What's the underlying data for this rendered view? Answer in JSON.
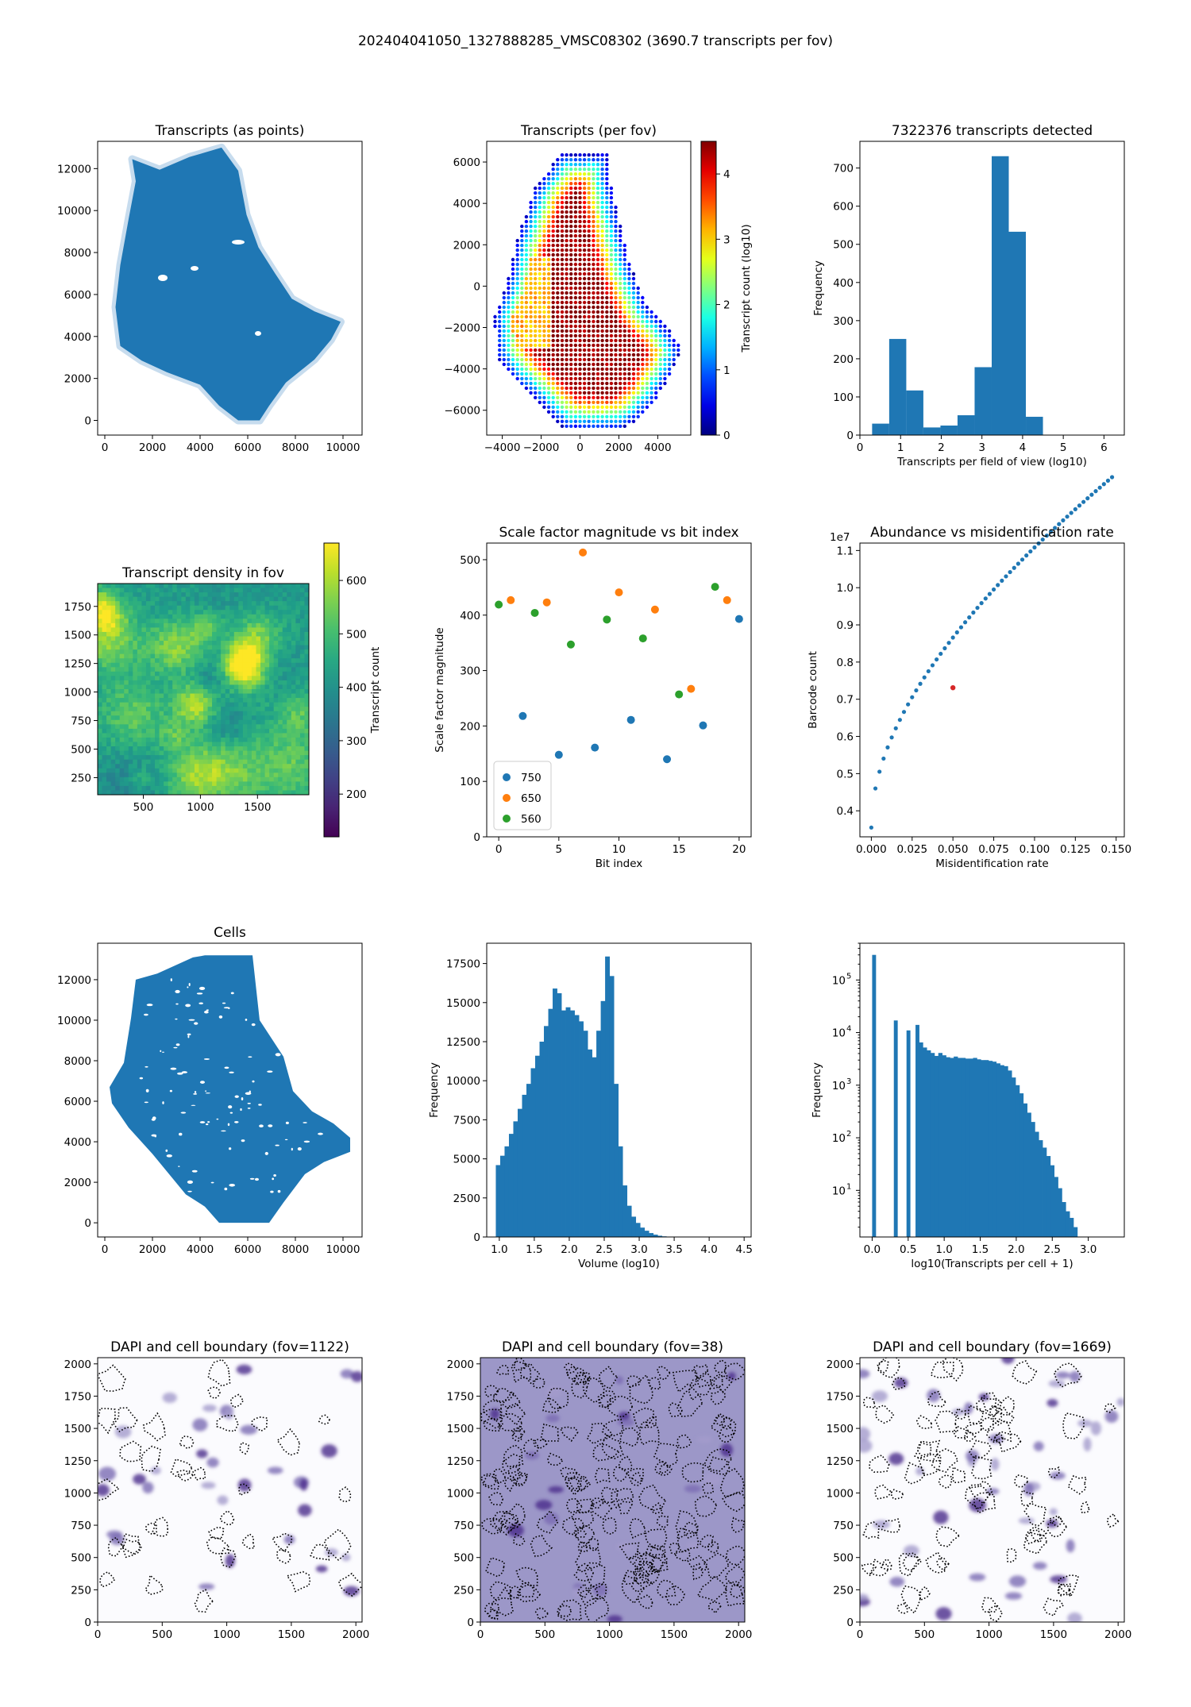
{
  "suptitle": "202404041050_1327888285_VMSC08302 (3690.7 transcripts per fov)",
  "colors": {
    "blue": "#1f77b4",
    "orange": "#ff7f0e",
    "green": "#2ca02c",
    "red": "#d62728"
  },
  "chart_data": [
    {
      "id": "p1",
      "type": "scatter",
      "title": "Transcripts (as points)",
      "xlim": [
        -300,
        10800
      ],
      "ylim": [
        -700,
        13300
      ],
      "xticks": [
        0,
        2000,
        4000,
        6000,
        8000,
        10000
      ],
      "yticks": [
        0,
        2000,
        4000,
        6000,
        8000,
        10000,
        12000
      ],
      "shape": [
        [
          1150,
          12450
        ],
        [
          2300,
          11950
        ],
        [
          3550,
          12550
        ],
        [
          4900,
          13000
        ],
        [
          5600,
          11900
        ],
        [
          5950,
          9800
        ],
        [
          6450,
          8250
        ],
        [
          7150,
          7000
        ],
        [
          7850,
          5800
        ],
        [
          8800,
          5200
        ],
        [
          9900,
          4700
        ],
        [
          9500,
          3850
        ],
        [
          8800,
          2900
        ],
        [
          7600,
          1800
        ],
        [
          6900,
          700
        ],
        [
          6500,
          0
        ],
        [
          5600,
          0
        ],
        [
          4800,
          700
        ],
        [
          4000,
          1700
        ],
        [
          2600,
          2300
        ],
        [
          1550,
          2850
        ],
        [
          650,
          3550
        ],
        [
          450,
          5400
        ],
        [
          650,
          7400
        ],
        [
          1000,
          9600
        ],
        [
          1300,
          11400
        ]
      ]
    },
    {
      "id": "p2",
      "type": "scatter",
      "title": "Transcripts (per fov)",
      "xlim": [
        -4800,
        5700
      ],
      "ylim": [
        -7200,
        7000
      ],
      "xticks": [
        -4000,
        -2000,
        0,
        2000,
        4000
      ],
      "yticks": [
        -6000,
        -4000,
        -2000,
        0,
        2000,
        4000,
        6000
      ],
      "colorbar": {
        "label": "Transcript count (log10)",
        "range": [
          0,
          4.5
        ],
        "ticks": [
          0,
          1,
          2,
          3,
          4
        ],
        "colormap": "jet"
      },
      "shape": [
        [
          -1000,
          6400
        ],
        [
          1400,
          6400
        ],
        [
          1600,
          4800
        ],
        [
          2100,
          2800
        ],
        [
          2600,
          1000
        ],
        [
          3400,
          -800
        ],
        [
          4200,
          -1600
        ],
        [
          5200,
          -3000
        ],
        [
          4700,
          -4300
        ],
        [
          3900,
          -5500
        ],
        [
          3000,
          -6500
        ],
        [
          1800,
          -7000
        ],
        [
          -800,
          -6900
        ],
        [
          -2000,
          -5800
        ],
        [
          -3200,
          -4700
        ],
        [
          -4300,
          -3400
        ],
        [
          -4400,
          -1400
        ],
        [
          -3800,
          0
        ],
        [
          -3300,
          2100
        ],
        [
          -2300,
          4800
        ]
      ]
    },
    {
      "id": "p3",
      "type": "bar",
      "title": "7322376 transcripts detected",
      "xlabel": "Transcripts per field of view (log10)",
      "ylabel": "Frequency",
      "xlim": [
        0,
        6.5
      ],
      "ylim": [
        0,
        770
      ],
      "xticks": [
        0,
        1,
        2,
        3,
        4,
        5,
        6
      ],
      "yticks": [
        0,
        100,
        200,
        300,
        400,
        500,
        600,
        700
      ],
      "bin_edges": [
        0.3,
        0.72,
        1.14,
        1.56,
        1.98,
        2.4,
        2.82,
        3.24,
        3.66,
        4.08,
        4.5
      ],
      "values": [
        30,
        252,
        117,
        20,
        25,
        52,
        178,
        731,
        533,
        48
      ]
    },
    {
      "id": "p4",
      "type": "heatmap",
      "title": "Transcript density in fov",
      "xlim": [
        100,
        1950
      ],
      "ylim": [
        100,
        1950
      ],
      "xticks": [
        500,
        1000,
        1500
      ],
      "yticks": [
        250,
        500,
        750,
        1000,
        1250,
        1500,
        1750
      ],
      "colorbar": {
        "label": "Transcript count",
        "range": [
          120,
          670
        ],
        "ticks": [
          200,
          300,
          400,
          500,
          600
        ],
        "colormap": "viridis"
      }
    },
    {
      "id": "p5",
      "type": "scatter",
      "title": "Scale factor magnitude vs bit index",
      "xlabel": "Bit index",
      "ylabel": "Scale factor magnitude",
      "xlim": [
        -1,
        21
      ],
      "ylim": [
        0,
        530
      ],
      "xticks": [
        0,
        5,
        10,
        15,
        20
      ],
      "yticks": [
        0,
        100,
        200,
        300,
        400,
        500
      ],
      "legend": {
        "position": "lower-left"
      },
      "series": [
        {
          "name": "750",
          "color": "#1f77b4",
          "x": [
            2,
            5,
            8,
            11,
            14,
            17,
            20
          ],
          "y": [
            218,
            148,
            161,
            211,
            140,
            201,
            393
          ]
        },
        {
          "name": "650",
          "color": "#ff7f0e",
          "x": [
            1,
            4,
            7,
            10,
            13,
            16,
            19
          ],
          "y": [
            427,
            423,
            513,
            441,
            410,
            267,
            427
          ]
        },
        {
          "name": "560",
          "color": "#2ca02c",
          "x": [
            0,
            3,
            6,
            9,
            12,
            15,
            18
          ],
          "y": [
            419,
            404,
            347,
            392,
            358,
            257,
            451
          ]
        }
      ]
    },
    {
      "id": "p6",
      "type": "scatter",
      "title": "Abundance vs misidentification rate",
      "xlabel": "Misidentification rate",
      "ylabel": "Barcode count",
      "sci_offset": "1e7",
      "xlim": [
        -0.007,
        0.155
      ],
      "ylim": [
        0.33,
        1.12
      ],
      "xticks": [
        0.0,
        0.025,
        0.05,
        0.075,
        0.1,
        0.125,
        0.15
      ],
      "yticks": [
        0.4,
        0.5,
        0.6,
        0.7,
        0.8,
        0.9,
        1.0,
        1.1
      ],
      "highlight": {
        "x": 0.05,
        "y": 0.731,
        "color": "#d62728"
      }
    },
    {
      "id": "p7",
      "type": "scatter",
      "title": "Cells",
      "xlim": [
        -300,
        10800
      ],
      "ylim": [
        -700,
        13800
      ],
      "xticks": [
        0,
        2000,
        4000,
        6000,
        8000,
        10000
      ],
      "yticks": [
        0,
        2000,
        4000,
        6000,
        8000,
        10000,
        12000
      ],
      "shape": [
        [
          1300,
          12000
        ],
        [
          2200,
          12300
        ],
        [
          3700,
          13100
        ],
        [
          4200,
          13200
        ],
        [
          6200,
          13200
        ],
        [
          6500,
          10000
        ],
        [
          7500,
          8200
        ],
        [
          7900,
          6500
        ],
        [
          8700,
          5500
        ],
        [
          9600,
          4900
        ],
        [
          10300,
          4200
        ],
        [
          10300,
          3500
        ],
        [
          9200,
          3000
        ],
        [
          8400,
          2400
        ],
        [
          7500,
          1000
        ],
        [
          6900,
          0
        ],
        [
          4800,
          0
        ],
        [
          4200,
          800
        ],
        [
          3400,
          1400
        ],
        [
          2000,
          3400
        ],
        [
          1000,
          4700
        ],
        [
          300,
          5900
        ],
        [
          200,
          6700
        ],
        [
          800,
          7900
        ],
        [
          1100,
          10100
        ]
      ]
    },
    {
      "id": "p8",
      "type": "bar",
      "title": "",
      "xlabel": "Volume (log10)",
      "ylabel": "Frequency",
      "xlim": [
        0.82,
        4.6
      ],
      "ylim": [
        0,
        18800
      ],
      "xticks": [
        1.0,
        1.5,
        2.0,
        2.5,
        3.0,
        3.5,
        4.0,
        4.5
      ],
      "yticks": [
        0,
        2500,
        5000,
        7500,
        10000,
        12500,
        15000,
        17500
      ],
      "bin_start": 0.95,
      "bin_width": 0.0625,
      "values": [
        4600,
        5200,
        5800,
        6600,
        7400,
        8200,
        9100,
        9800,
        10800,
        11600,
        12500,
        13500,
        14600,
        15900,
        15600,
        14500,
        14700,
        14500,
        14200,
        13800,
        13200,
        12000,
        11500,
        13200,
        15100,
        17950,
        16700,
        9800,
        5800,
        3300,
        2000,
        1300,
        900,
        600,
        400,
        250,
        150,
        80,
        40
      ]
    },
    {
      "id": "p9",
      "type": "bar",
      "title": "",
      "xlabel": "log10(Transcripts per cell + 1)",
      "ylabel": "Frequency",
      "yscale": "log",
      "xlim": [
        -0.17,
        3.5
      ],
      "ylim": [
        1.3,
        500000
      ],
      "xticks": [
        0.0,
        0.5,
        1.0,
        1.5,
        2.0,
        2.5,
        3.0
      ],
      "yticks": [
        "10^1",
        "10^2",
        "10^3",
        "10^4",
        "10^5"
      ],
      "bars": [
        [
          0.0,
          300000
        ],
        [
          0.301,
          17000
        ],
        [
          0.477,
          11000
        ],
        [
          0.602,
          14000
        ]
      ],
      "bin_start": 0.65,
      "bin_width": 0.0536,
      "values": [
        6500,
        5200,
        4600,
        4100,
        3600,
        4100,
        3700,
        3400,
        3300,
        3500,
        3300,
        3300,
        3200,
        3200,
        3300,
        3100,
        3000,
        3000,
        2900,
        2800,
        2600,
        2400,
        2300,
        1900,
        1400,
        1000,
        700,
        450,
        300,
        200,
        130,
        90,
        65,
        45,
        30,
        18,
        11,
        6,
        4,
        3,
        2
      ]
    },
    {
      "id": "p10",
      "type": "image",
      "title": "DAPI and cell boundary (fov=1122)",
      "xlim": [
        0,
        2048
      ],
      "ylim": [
        0,
        2048
      ],
      "xticks": [
        0,
        500,
        1000,
        1500,
        2000
      ],
      "yticks": [
        0,
        250,
        500,
        750,
        1000,
        1250,
        1500,
        1750,
        2000
      ]
    },
    {
      "id": "p11",
      "type": "image",
      "title": "DAPI and cell boundary (fov=38)",
      "xlim": [
        0,
        2048
      ],
      "ylim": [
        0,
        2048
      ],
      "xticks": [
        0,
        500,
        1000,
        1500,
        2000
      ],
      "yticks": [
        0,
        250,
        500,
        750,
        1000,
        1250,
        1500,
        1750,
        2000
      ]
    },
    {
      "id": "p12",
      "type": "image",
      "title": "DAPI and cell boundary (fov=1669)",
      "xlim": [
        0,
        2048
      ],
      "ylim": [
        0,
        2048
      ],
      "xticks": [
        0,
        500,
        1000,
        1500,
        2000
      ],
      "yticks": [
        0,
        250,
        500,
        750,
        1000,
        1250,
        1500,
        1750,
        2000
      ]
    }
  ]
}
